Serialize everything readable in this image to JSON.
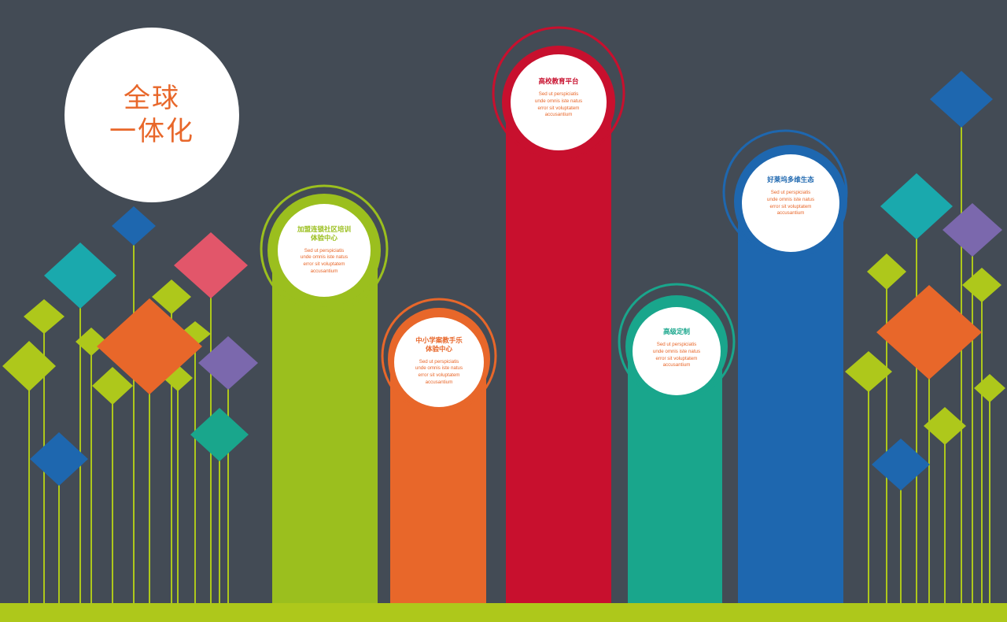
{
  "title": {
    "line1": "全球",
    "line2": "一体化"
  },
  "colors": {
    "background": "#434b55",
    "ground": "#aec81b",
    "green": "#9bbf1e",
    "orange": "#e8672a",
    "red": "#c8102e",
    "teal": "#19a68c",
    "blue": "#1e67af",
    "cyan": "#1aa9ad",
    "lime": "#aec81b",
    "purple": "#7b68ad",
    "coral": "#e2566a"
  },
  "body_text": "Sed ut perspiciatis\nunde omnis iste natus\nerror sit voluptatem\naccusantium",
  "columns": [
    {
      "id": "community",
      "title": "加盟连锁社区培训\n体验中心",
      "color": "#9bbf1e",
      "text_color": "#9bbf1e"
    },
    {
      "id": "school",
      "title": "中小学案教手乐\n体验中心",
      "color": "#e8672a",
      "text_color": "#e8672a"
    },
    {
      "id": "university",
      "title": "高校教育平台",
      "color": "#c8102e",
      "text_color": "#c8102e"
    },
    {
      "id": "custom",
      "title": "高级定制",
      "color": "#19a68c",
      "text_color": "#19a68c"
    },
    {
      "id": "hollywood",
      "title": "好莱坞多维生态",
      "color": "#1e67af",
      "text_color": "#1e67af"
    }
  ]
}
